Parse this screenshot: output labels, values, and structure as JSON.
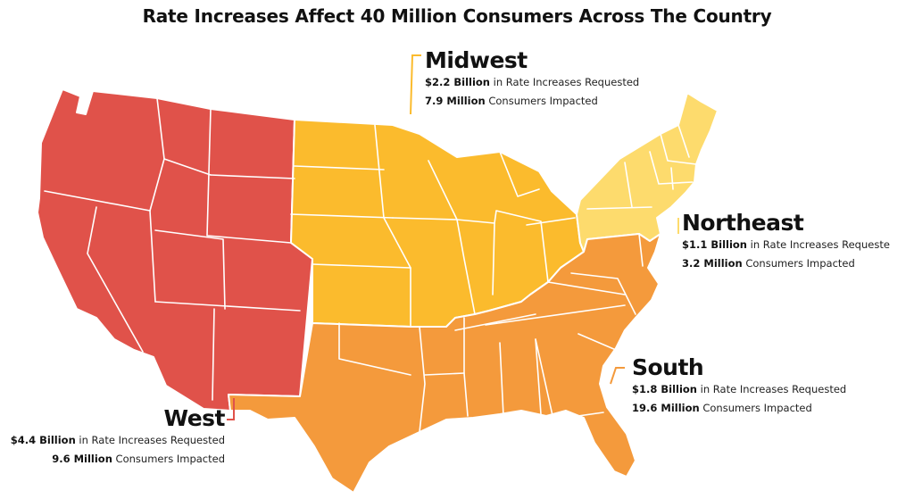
{
  "title": "Rate Increases Affect 40 Million Consumers Across The Country",
  "colors": {
    "west": "#e0524a",
    "midwest": "#fbbb2d",
    "northeast": "#fddb6d",
    "south": "#f49a3c",
    "border": "#ffffff"
  },
  "regions": {
    "midwest": {
      "name": "Midwest",
      "amount": "$2.2 Billion",
      "amount_text": " in Rate Increases Requested",
      "consumers": "7.9 Million",
      "consumers_text": " Consumers Impacted"
    },
    "northeast": {
      "name": "Northeast",
      "amount": "$1.1 Billion",
      "amount_text": " in Rate Increases Requeste",
      "consumers": "3.2 Million",
      "consumers_text": " Consumers Impacted"
    },
    "south": {
      "name": "South",
      "amount": "$1.8 Billion",
      "amount_text": " in Rate Increases Requested",
      "consumers": "19.6 Million",
      "consumers_text": " Consumers Impacted"
    },
    "west": {
      "name": "West",
      "amount": "$4.4 Billion",
      "amount_text": " in Rate Increases Requested",
      "consumers": "9.6 Million",
      "consumers_text": " Consumers Impacted"
    }
  }
}
